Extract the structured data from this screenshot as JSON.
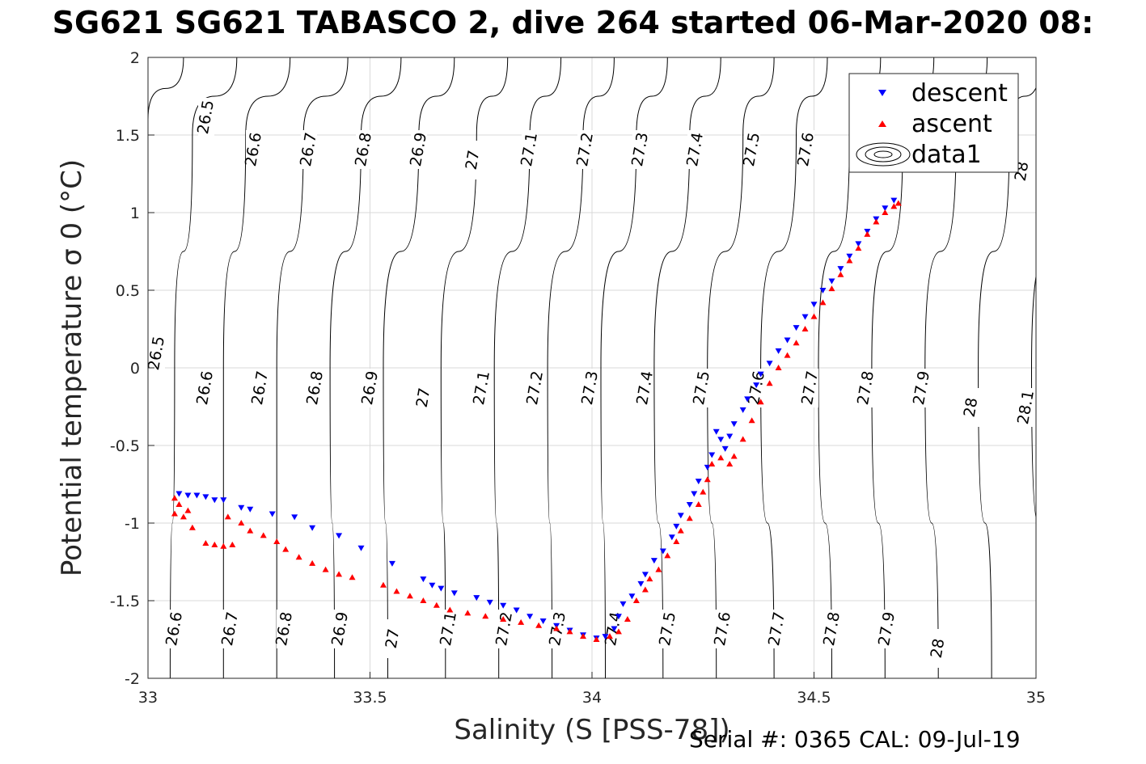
{
  "page_title": "SG621 SG621 TABASCO 2, dive 264 started 06-Mar-2020 08:",
  "footer": "Serial #: 0365  CAL: 09-Jul-19",
  "chart_data": {
    "type": "scatter",
    "title": "SG621 SG621 TABASCO 2, dive 264 started 06-Mar-2020 08:",
    "xlabel": "Salinity (S [PSS-78])",
    "ylabel": "Potential temperature σ 0 (°C)",
    "xlim": [
      33,
      35
    ],
    "ylim": [
      -2,
      2
    ],
    "grid": true,
    "legend_position": "top-right",
    "x_ticks": [
      "33",
      "33.5",
      "34",
      "34.5",
      "35"
    ],
    "y_ticks": [
      "-2",
      "-1.5",
      "-1",
      "-0.5",
      "0",
      "0.5",
      "1",
      "1.5",
      "2"
    ],
    "legend": [
      "descent",
      "ascent",
      "data1"
    ],
    "colors": {
      "descent": "#0000ff",
      "ascent": "#ff0000",
      "contours": "#000000",
      "grid": "#d9d9d9"
    },
    "contour_labels": {
      "top": [
        "26.5",
        "26.6",
        "26.7",
        "26.8",
        "26.9",
        "27",
        "27.1",
        "27.2",
        "27.3",
        "27.4",
        "27.5",
        "27.6",
        "28"
      ],
      "middle": [
        "26.5",
        "26.6",
        "26.7",
        "26.8",
        "26.9",
        "27",
        "27.1",
        "27.2",
        "27.3",
        "27.4",
        "27.5",
        "27.6",
        "27.7",
        "27.8",
        "27.9",
        "28",
        "28.1"
      ],
      "bottom": [
        "26.6",
        "26.7",
        "26.8",
        "26.9",
        "27",
        "27.1",
        "27.2",
        "27.3",
        "27.4",
        "27.5",
        "27.6",
        "27.7",
        "27.8",
        "27.9",
        "28"
      ]
    },
    "contour_lines": [
      {
        "p": [
          [
            33.08,
            2.0
          ],
          [
            33.0,
            1.6
          ],
          [
            32.96,
            0.0
          ],
          [
            32.94,
            -2.0
          ]
        ]
      },
      {
        "p": [
          [
            33.2,
            2.0
          ],
          [
            33.1,
            1.5
          ],
          [
            33.06,
            0.0
          ],
          [
            33.05,
            -2.0
          ]
        ]
      },
      {
        "p": [
          [
            33.32,
            2.0
          ],
          [
            33.22,
            1.5
          ],
          [
            33.17,
            0.0
          ],
          [
            33.17,
            -2.0
          ]
        ]
      },
      {
        "p": [
          [
            33.45,
            2.0
          ],
          [
            33.35,
            1.5
          ],
          [
            33.29,
            0.0
          ],
          [
            33.29,
            -2.0
          ]
        ]
      },
      {
        "p": [
          [
            33.57,
            2.0
          ],
          [
            33.48,
            1.5
          ],
          [
            33.41,
            0.0
          ],
          [
            33.42,
            -2.0
          ]
        ]
      },
      {
        "p": [
          [
            33.69,
            2.0
          ],
          [
            33.61,
            1.5
          ],
          [
            33.53,
            0.0
          ],
          [
            33.54,
            -2.0
          ]
        ]
      },
      {
        "p": [
          [
            33.81,
            2.0
          ],
          [
            33.74,
            1.5
          ],
          [
            33.66,
            0.0
          ],
          [
            33.67,
            -2.0
          ]
        ]
      },
      {
        "p": [
          [
            33.93,
            2.0
          ],
          [
            33.86,
            1.5
          ],
          [
            33.78,
            0.0
          ],
          [
            33.79,
            -2.0
          ]
        ]
      },
      {
        "p": [
          [
            34.05,
            2.0
          ],
          [
            33.98,
            1.5
          ],
          [
            33.9,
            0.0
          ],
          [
            33.91,
            -2.0
          ]
        ]
      },
      {
        "p": [
          [
            34.17,
            2.0
          ],
          [
            34.1,
            1.5
          ],
          [
            34.02,
            0.0
          ],
          [
            34.03,
            -2.0
          ]
        ]
      },
      {
        "p": [
          [
            34.29,
            2.0
          ],
          [
            34.22,
            1.5
          ],
          [
            34.14,
            0.0
          ],
          [
            34.16,
            -2.0
          ]
        ]
      },
      {
        "p": [
          [
            34.41,
            2.0
          ],
          [
            34.34,
            1.5
          ],
          [
            34.26,
            0.0
          ],
          [
            34.28,
            -2.0
          ]
        ]
      },
      {
        "p": [
          [
            34.53,
            2.0
          ],
          [
            34.46,
            1.5
          ],
          [
            34.38,
            0.0
          ],
          [
            34.41,
            -2.0
          ]
        ]
      },
      {
        "p": [
          [
            34.65,
            2.0
          ],
          [
            34.58,
            1.5
          ],
          [
            34.51,
            0.0
          ],
          [
            34.54,
            -2.0
          ]
        ]
      },
      {
        "p": [
          [
            34.77,
            2.0
          ],
          [
            34.7,
            1.5
          ],
          [
            34.63,
            0.0
          ],
          [
            34.66,
            -2.0
          ]
        ]
      },
      {
        "p": [
          [
            34.89,
            2.0
          ],
          [
            34.82,
            1.5
          ],
          [
            34.75,
            0.0
          ],
          [
            34.78,
            -2.0
          ]
        ]
      },
      {
        "p": [
          [
            35.01,
            2.0
          ],
          [
            34.94,
            1.5
          ],
          [
            34.87,
            0.0
          ],
          [
            34.9,
            -2.0
          ]
        ]
      },
      {
        "p": [
          [
            35.13,
            2.0
          ],
          [
            35.06,
            1.5
          ],
          [
            34.99,
            0.0
          ],
          [
            35.02,
            -2.0
          ]
        ]
      }
    ],
    "series": [
      {
        "name": "descent",
        "points": [
          [
            33.07,
            -0.81
          ],
          [
            33.09,
            -0.82
          ],
          [
            33.11,
            -0.82
          ],
          [
            33.13,
            -0.83
          ],
          [
            33.15,
            -0.85
          ],
          [
            33.17,
            -0.85
          ],
          [
            33.21,
            -0.9
          ],
          [
            33.23,
            -0.91
          ],
          [
            33.28,
            -0.94
          ],
          [
            33.33,
            -0.96
          ],
          [
            33.37,
            -1.03
          ],
          [
            33.43,
            -1.08
          ],
          [
            33.48,
            -1.16
          ],
          [
            33.55,
            -1.26
          ],
          [
            33.62,
            -1.36
          ],
          [
            33.64,
            -1.4
          ],
          [
            33.66,
            -1.42
          ],
          [
            33.69,
            -1.45
          ],
          [
            33.74,
            -1.48
          ],
          [
            33.77,
            -1.51
          ],
          [
            33.8,
            -1.53
          ],
          [
            33.83,
            -1.56
          ],
          [
            33.86,
            -1.6
          ],
          [
            33.89,
            -1.63
          ],
          [
            33.92,
            -1.66
          ],
          [
            33.95,
            -1.69
          ],
          [
            33.98,
            -1.72
          ],
          [
            34.01,
            -1.74
          ],
          [
            34.03,
            -1.73
          ],
          [
            34.05,
            -1.68
          ],
          [
            34.06,
            -1.6
          ],
          [
            34.07,
            -1.52
          ],
          [
            34.09,
            -1.47
          ],
          [
            34.11,
            -1.39
          ],
          [
            34.12,
            -1.33
          ],
          [
            34.14,
            -1.24
          ],
          [
            34.16,
            -1.18
          ],
          [
            34.18,
            -1.09
          ],
          [
            34.19,
            -1.02
          ],
          [
            34.2,
            -0.95
          ],
          [
            34.22,
            -0.88
          ],
          [
            34.23,
            -0.81
          ],
          [
            34.24,
            -0.73
          ],
          [
            34.26,
            -0.64
          ],
          [
            34.27,
            -0.56
          ],
          [
            34.29,
            -0.46
          ],
          [
            34.28,
            -0.41
          ],
          [
            34.3,
            -0.52
          ],
          [
            34.31,
            -0.44
          ],
          [
            34.32,
            -0.36
          ],
          [
            34.34,
            -0.27
          ],
          [
            34.35,
            -0.2
          ],
          [
            34.37,
            -0.11
          ],
          [
            34.38,
            -0.04
          ],
          [
            34.4,
            0.03
          ],
          [
            34.42,
            0.11
          ],
          [
            34.44,
            0.18
          ],
          [
            34.46,
            0.26
          ],
          [
            34.48,
            0.33
          ],
          [
            34.5,
            0.41
          ],
          [
            34.52,
            0.5
          ],
          [
            34.54,
            0.56
          ],
          [
            34.56,
            0.64
          ],
          [
            34.58,
            0.72
          ],
          [
            34.6,
            0.8
          ],
          [
            34.62,
            0.88
          ],
          [
            34.64,
            0.96
          ],
          [
            34.66,
            1.03
          ],
          [
            34.68,
            1.08
          ]
        ]
      },
      {
        "name": "ascent",
        "points": [
          [
            33.06,
            -0.84
          ],
          [
            33.07,
            -0.88
          ],
          [
            33.06,
            -0.94
          ],
          [
            33.08,
            -0.96
          ],
          [
            33.09,
            -0.92
          ],
          [
            33.1,
            -1.03
          ],
          [
            33.13,
            -1.13
          ],
          [
            33.15,
            -1.14
          ],
          [
            33.17,
            -1.15
          ],
          [
            33.19,
            -1.14
          ],
          [
            33.18,
            -0.96
          ],
          [
            33.21,
            -1.0
          ],
          [
            33.23,
            -1.05
          ],
          [
            33.26,
            -1.08
          ],
          [
            33.29,
            -1.12
          ],
          [
            33.31,
            -1.17
          ],
          [
            33.34,
            -1.22
          ],
          [
            33.37,
            -1.26
          ],
          [
            33.4,
            -1.3
          ],
          [
            33.43,
            -1.33
          ],
          [
            33.46,
            -1.35
          ],
          [
            33.53,
            -1.4
          ],
          [
            33.56,
            -1.44
          ],
          [
            33.59,
            -1.47
          ],
          [
            33.62,
            -1.5
          ],
          [
            33.65,
            -1.53
          ],
          [
            33.68,
            -1.56
          ],
          [
            33.72,
            -1.58
          ],
          [
            33.76,
            -1.6
          ],
          [
            33.8,
            -1.62
          ],
          [
            33.84,
            -1.64
          ],
          [
            33.88,
            -1.66
          ],
          [
            33.92,
            -1.68
          ],
          [
            33.95,
            -1.7
          ],
          [
            33.98,
            -1.73
          ],
          [
            34.01,
            -1.75
          ],
          [
            34.04,
            -1.73
          ],
          [
            34.06,
            -1.7
          ],
          [
            34.08,
            -1.62
          ],
          [
            34.1,
            -1.5
          ],
          [
            34.12,
            -1.43
          ],
          [
            34.13,
            -1.36
          ],
          [
            34.15,
            -1.3
          ],
          [
            34.17,
            -1.21
          ],
          [
            34.19,
            -1.12
          ],
          [
            34.2,
            -1.05
          ],
          [
            34.22,
            -0.97
          ],
          [
            34.24,
            -0.88
          ],
          [
            34.25,
            -0.8
          ],
          [
            34.26,
            -0.72
          ],
          [
            34.27,
            -0.62
          ],
          [
            34.29,
            -0.58
          ],
          [
            34.31,
            -0.62
          ],
          [
            34.32,
            -0.57
          ],
          [
            34.34,
            -0.46
          ],
          [
            34.36,
            -0.34
          ],
          [
            34.38,
            -0.22
          ],
          [
            34.4,
            -0.1
          ],
          [
            34.42,
            0.0
          ],
          [
            34.44,
            0.08
          ],
          [
            34.46,
            0.16
          ],
          [
            34.48,
            0.25
          ],
          [
            34.5,
            0.33
          ],
          [
            34.52,
            0.42
          ],
          [
            34.54,
            0.51
          ],
          [
            34.56,
            0.6
          ],
          [
            34.58,
            0.69
          ],
          [
            34.6,
            0.77
          ],
          [
            34.62,
            0.86
          ],
          [
            34.64,
            0.94
          ],
          [
            34.66,
            1.0
          ],
          [
            34.68,
            1.04
          ],
          [
            34.69,
            1.06
          ]
        ]
      }
    ]
  }
}
